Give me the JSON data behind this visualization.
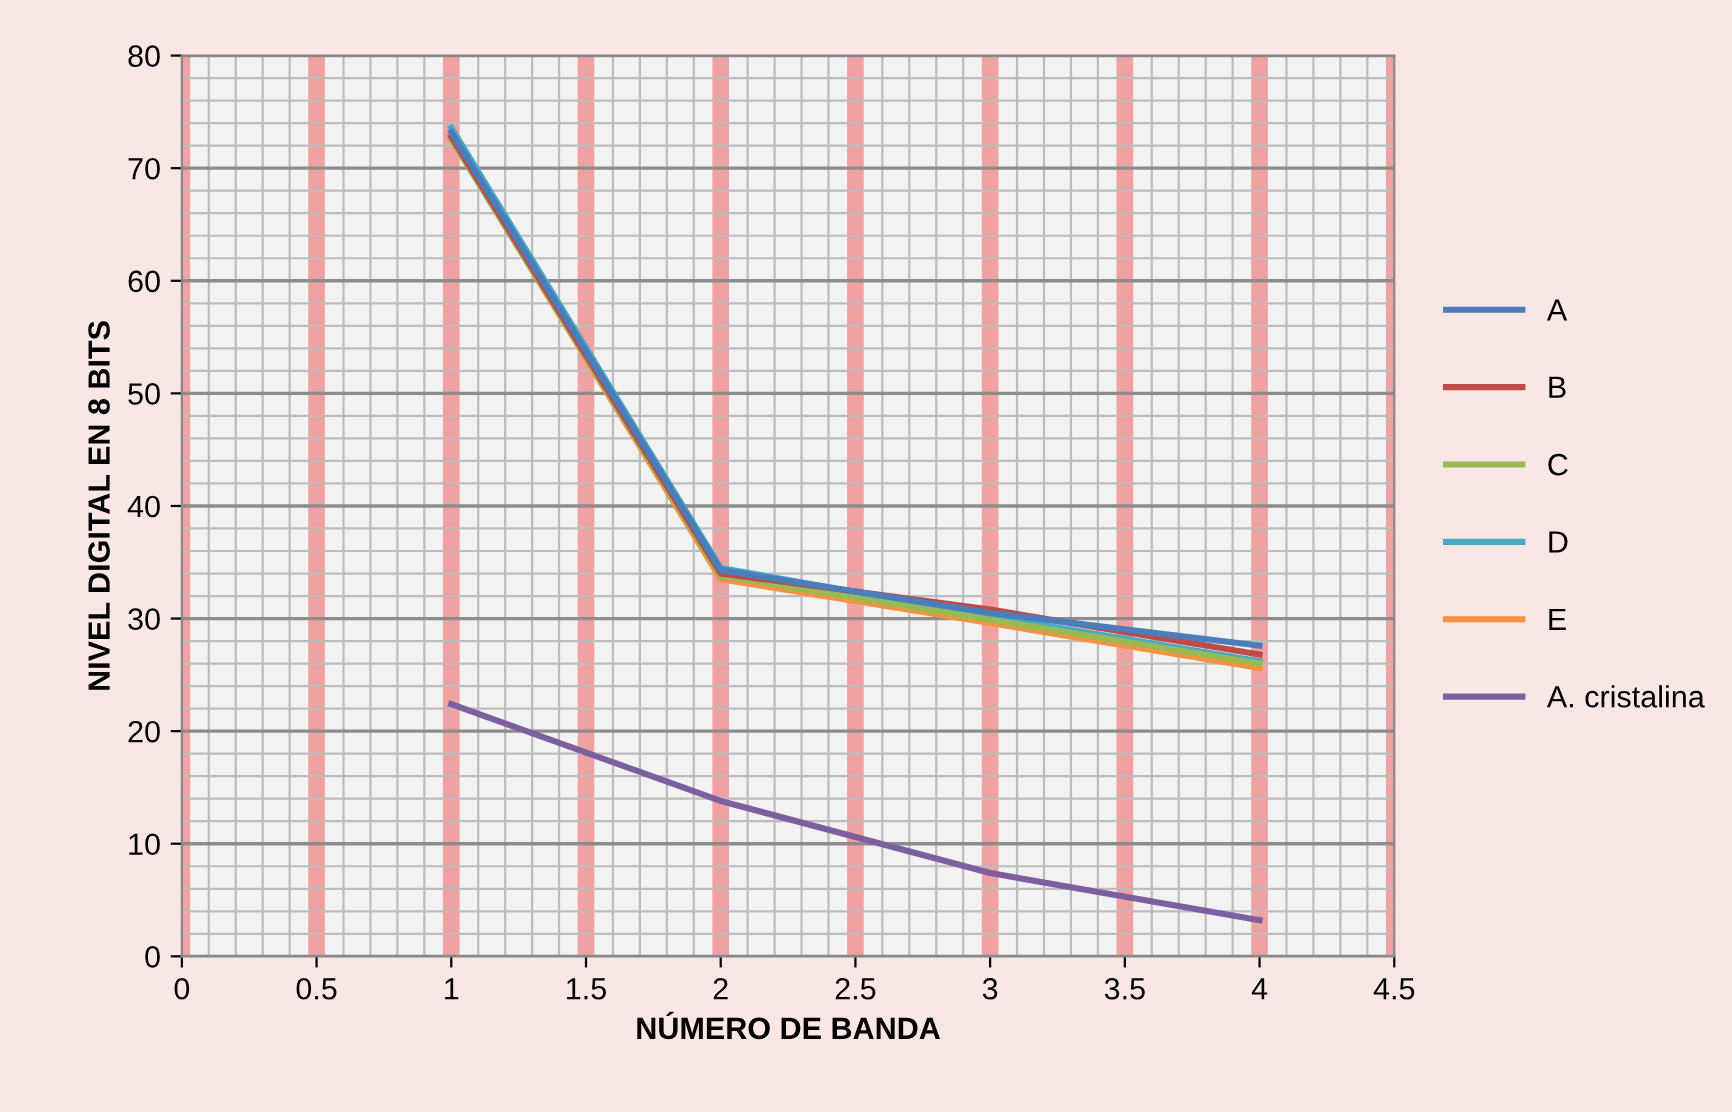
{
  "chart_data": {
    "type": "line",
    "xlabel": "NÚMERO DE BANDA",
    "ylabel": "NIVEL DIGITAL EN 8 BITS",
    "x": [
      1,
      2,
      3,
      4
    ],
    "series": [
      {
        "name": "A",
        "color": "#4a7ebb",
        "values": [
          73.2,
          34.3,
          30.5,
          27.6
        ]
      },
      {
        "name": "B",
        "color": "#be4b48",
        "values": [
          72.8,
          34.0,
          30.8,
          26.8
        ]
      },
      {
        "name": "C",
        "color": "#98b954",
        "values": [
          72.6,
          33.8,
          29.9,
          26.0
        ]
      },
      {
        "name": "D",
        "color": "#46aac5",
        "values": [
          73.6,
          34.5,
          30.2,
          26.2
        ]
      },
      {
        "name": "E",
        "color": "#f69240",
        "values": [
          72.7,
          33.5,
          29.6,
          25.6
        ]
      },
      {
        "name": "A. cristalina",
        "color": "#7d5fa0",
        "values": [
          22.4,
          13.8,
          7.4,
          3.2
        ]
      }
    ],
    "xlim": [
      0,
      4.5
    ],
    "xticks": [
      0,
      0.5,
      1,
      1.5,
      2,
      2.5,
      3,
      3.5,
      4,
      4.5
    ],
    "ylim": [
      0,
      80
    ],
    "yticks": [
      0,
      10,
      20,
      30,
      40,
      50,
      60,
      70,
      80
    ],
    "grid": true,
    "legend": "right",
    "marker": "none",
    "line_style": "solid"
  }
}
